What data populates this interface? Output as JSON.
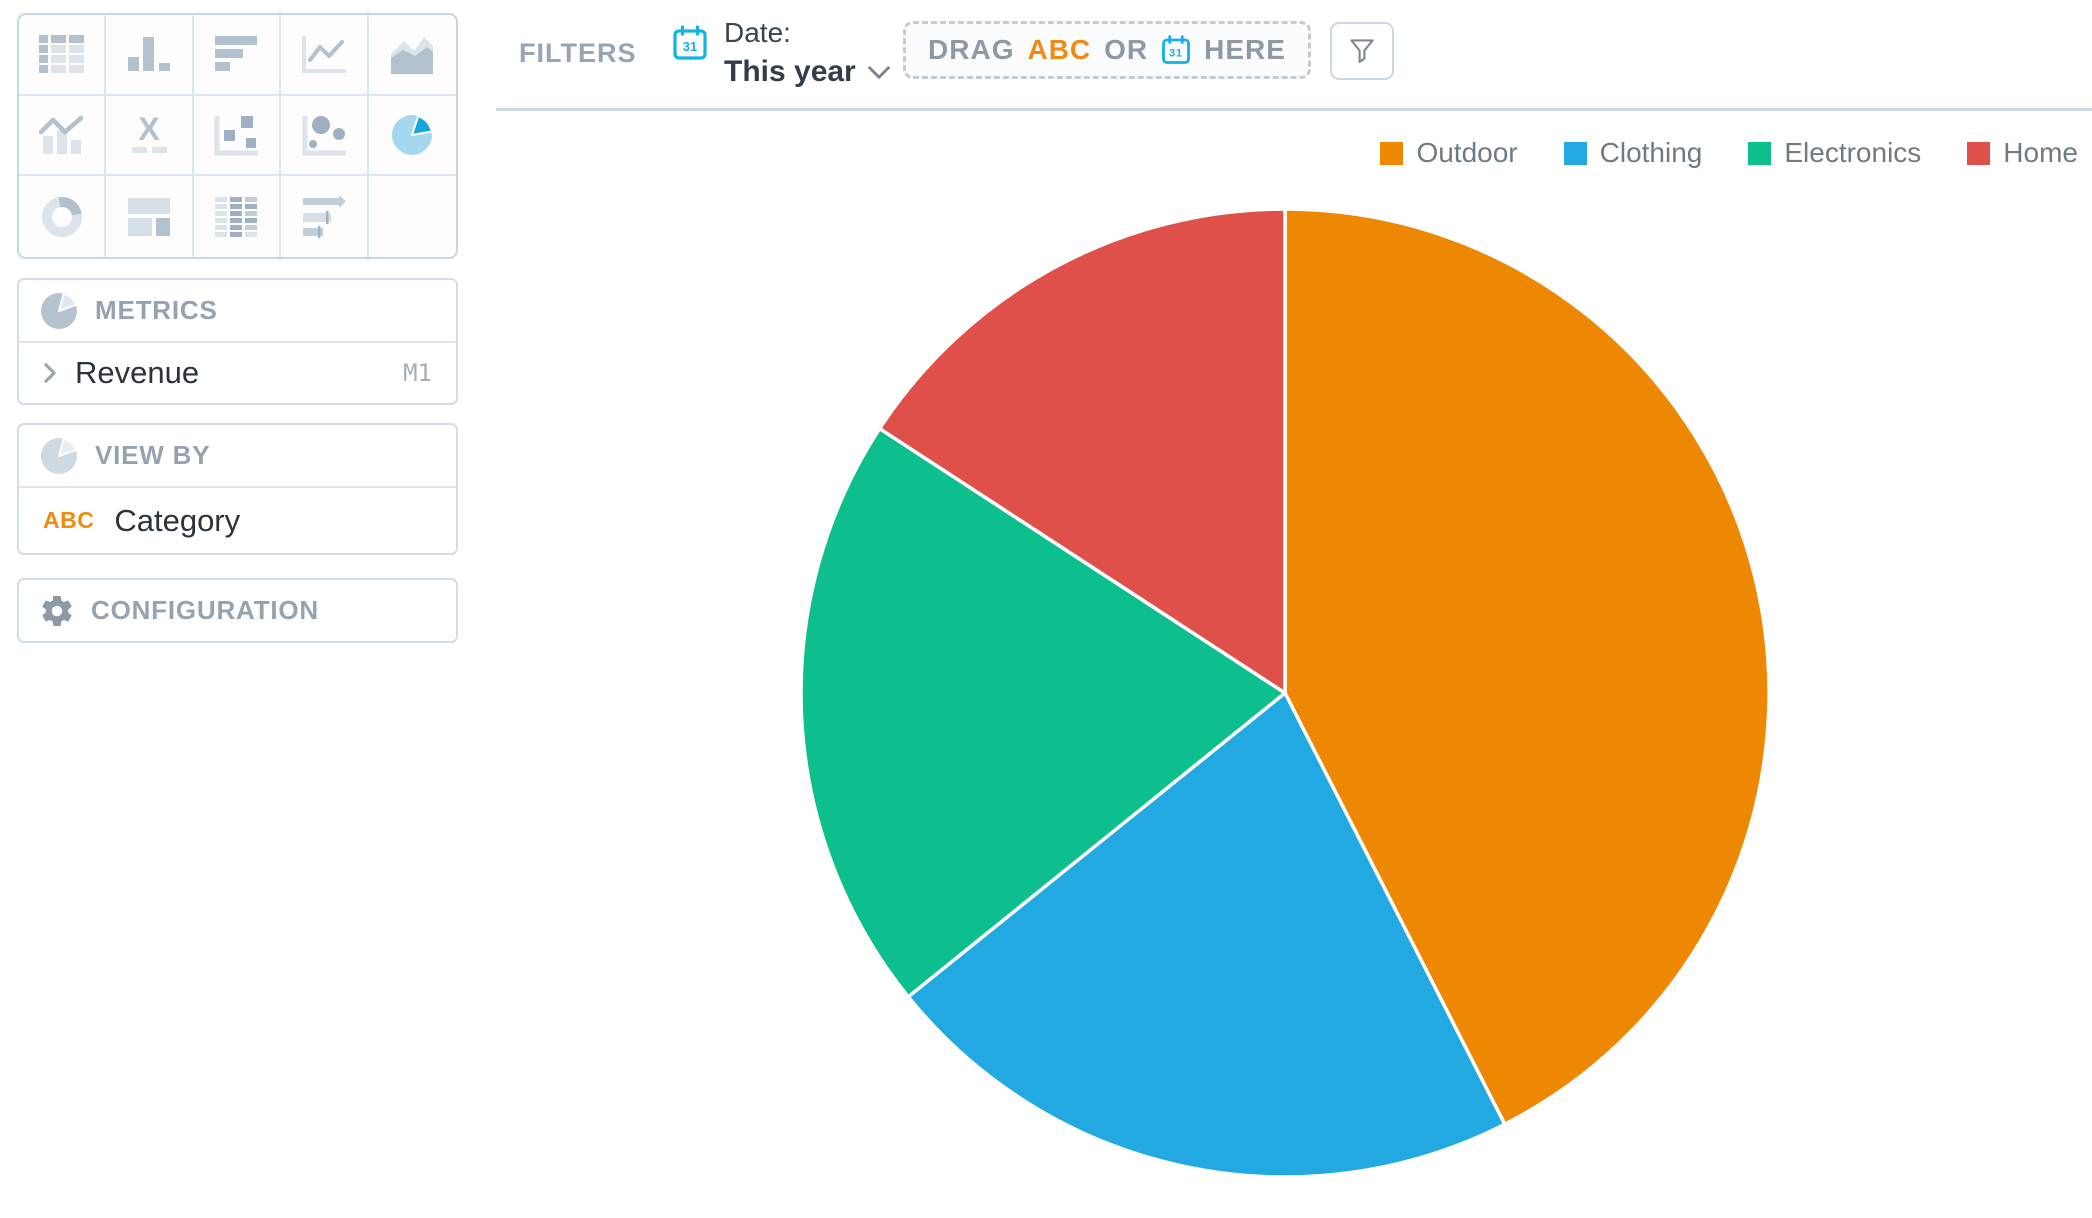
{
  "visualization_picker": {
    "selected": "pie-chart",
    "items": [
      {
        "name": "table"
      },
      {
        "name": "column-chart"
      },
      {
        "name": "bar-chart"
      },
      {
        "name": "line-chart"
      },
      {
        "name": "area-chart"
      },
      {
        "name": "combo-chart"
      },
      {
        "name": "headline"
      },
      {
        "name": "scatter-plot"
      },
      {
        "name": "bubble-chart"
      },
      {
        "name": "pie-chart"
      },
      {
        "name": "donut-chart"
      },
      {
        "name": "treemap"
      },
      {
        "name": "heatmap"
      },
      {
        "name": "bullet-chart"
      }
    ]
  },
  "metrics_panel": {
    "title": "METRICS",
    "items": [
      {
        "label": "Revenue",
        "badge": "M1"
      }
    ]
  },
  "view_by_panel": {
    "title": "VIEW BY",
    "items": [
      {
        "prefix": "ABC",
        "label": "Category"
      }
    ]
  },
  "configuration_panel": {
    "title": "CONFIGURATION"
  },
  "filter_bar": {
    "section_label": "FILTERS",
    "date_filter": {
      "label": "Date:",
      "value": "This year"
    },
    "drop_zone": {
      "text_drag": "DRAG",
      "text_abc": "ABC",
      "text_or": "OR",
      "text_here": "HERE"
    }
  },
  "chart_data": {
    "type": "pie",
    "title": "",
    "categories": [
      "Outdoor",
      "Clothing",
      "Electronics",
      "Home"
    ],
    "values": [
      42.5,
      21.7,
      20.0,
      15.8
    ],
    "value_unit": "percent-of-total",
    "colors": [
      "#ee8701",
      "#23a9e1",
      "#0cbf8d",
      "#e0504a"
    ],
    "legend_position": "top-right",
    "start_angle_deg": 0,
    "direction": "clockwise",
    "separator_color": "#ffffff"
  }
}
